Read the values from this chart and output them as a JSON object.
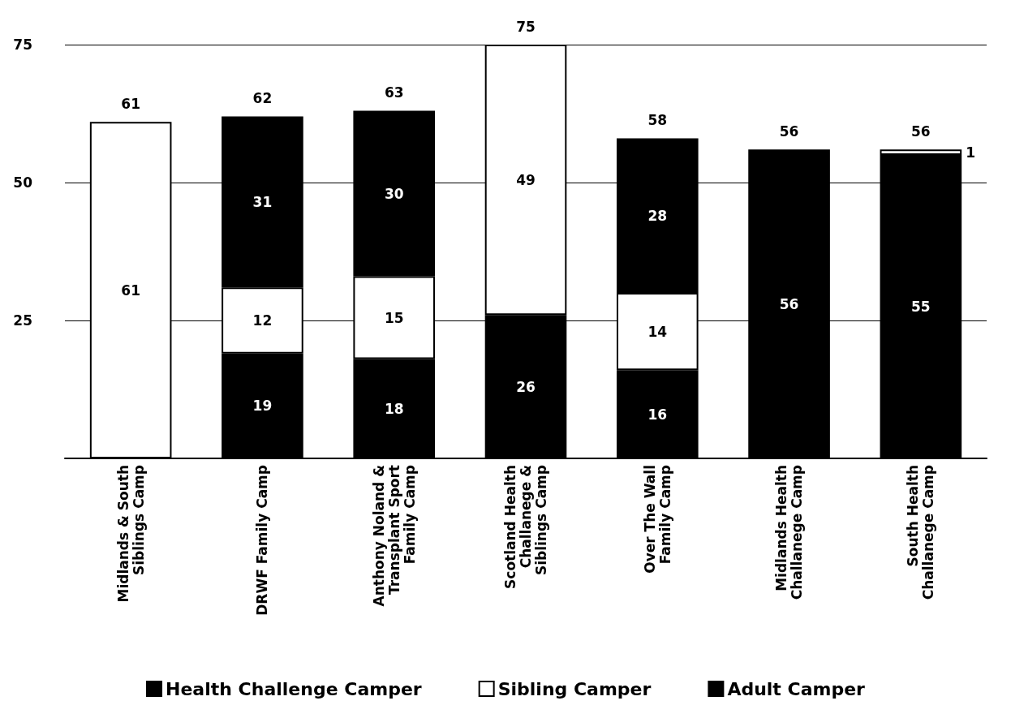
{
  "chart_data": {
    "type": "bar",
    "stacked": true,
    "categories": [
      "Midlands & South Siblings Camp",
      "DRWF Family Camp",
      "Anthony Noland & Transplant Sport Family Camp",
      "Scotland Health Challanege & Siblings Camp",
      "Over The Wall Family Camp",
      "Midlands Health Challanege Camp",
      "South Health Challanege Camp"
    ],
    "series": [
      {
        "name": "Health Challenge Camper",
        "color": "#000000",
        "values": [
          null,
          19,
          18,
          26,
          16,
          56,
          55
        ]
      },
      {
        "name": "Sibling Camper",
        "color": "#ffffff",
        "values": [
          61,
          12,
          15,
          49,
          14,
          null,
          1
        ]
      },
      {
        "name": "Adult Camper",
        "color": "#000000",
        "values": [
          null,
          31,
          30,
          null,
          28,
          null,
          null
        ]
      }
    ],
    "totals": [
      "61",
      "62",
      "63",
      "75",
      "58",
      "56",
      "56"
    ],
    "ylim": [
      0,
      75
    ],
    "yticks": [
      25,
      50,
      75
    ],
    "grid": "y",
    "legend": "bottom",
    "data_labels": true
  }
}
